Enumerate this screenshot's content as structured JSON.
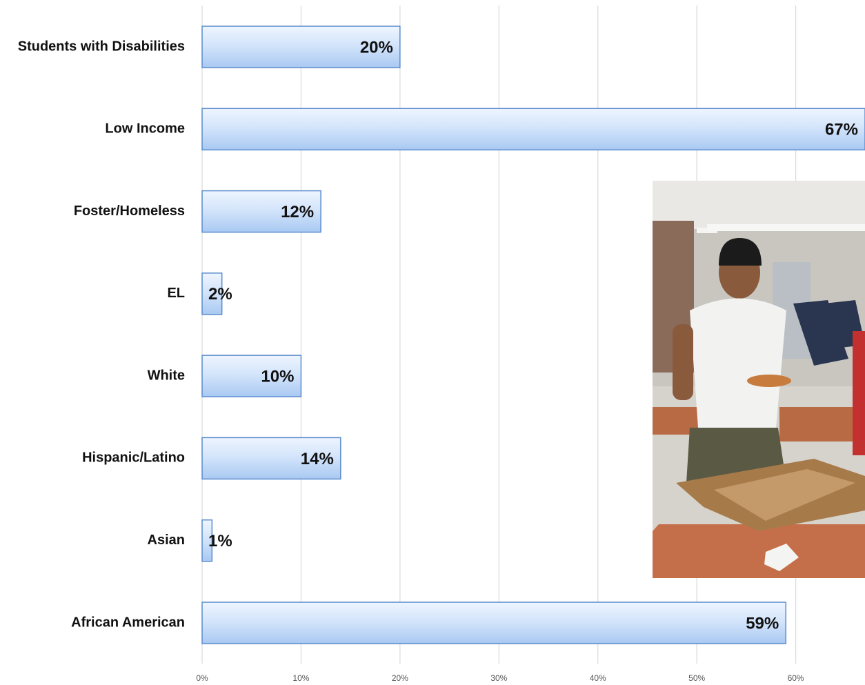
{
  "chart_data": {
    "type": "bar",
    "orientation": "horizontal",
    "categories": [
      "Students with Disabilities",
      "Low Income",
      "Foster/Homeless",
      "EL",
      "White",
      "Hispanic/Latino",
      "Asian",
      "African American"
    ],
    "values": [
      20,
      67,
      12,
      2,
      10,
      14,
      1,
      59
    ],
    "value_labels": [
      "20%",
      "67%",
      "12%",
      "2%",
      "10%",
      "14%",
      "1%",
      "59%"
    ],
    "color": "#a9c9f2",
    "xlim": [
      0,
      67
    ],
    "xticks": [
      {
        "value": 0,
        "label": "0%"
      },
      {
        "value": 10,
        "label": "10%"
      },
      {
        "value": 20,
        "label": "20%"
      },
      {
        "value": 30,
        "label": "30%"
      },
      {
        "value": 40,
        "label": "40%"
      },
      {
        "value": 50,
        "label": "50%"
      },
      {
        "value": 60,
        "label": "60%"
      }
    ],
    "grid": true
  }
}
